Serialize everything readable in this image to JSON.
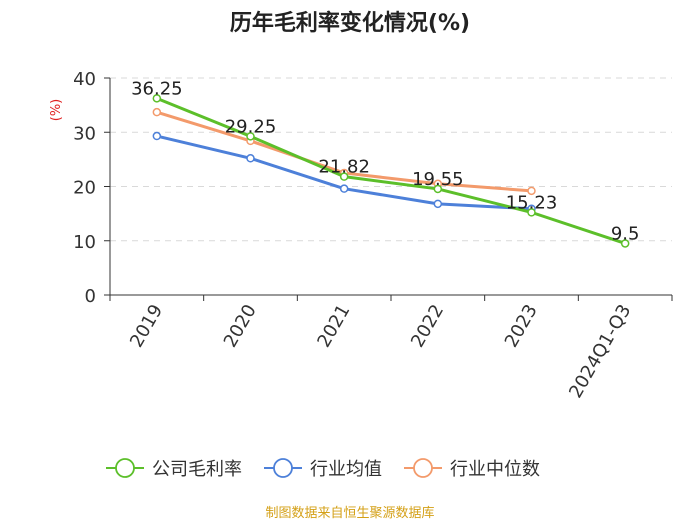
{
  "chart_data": {
    "type": "line",
    "title": "历年毛利率变化情况(%)",
    "ylabel": "(%)",
    "xlabel": "",
    "categories": [
      "2019",
      "2020",
      "2021",
      "2022",
      "2023",
      "2024Q1-Q3"
    ],
    "ylim": [
      0,
      40
    ],
    "yticks": [
      0,
      10,
      20,
      30,
      40
    ],
    "grid": "horizontal-dashed",
    "legend_position": "bottom",
    "series": [
      {
        "name": "公司毛利率",
        "color": "#5cbf2a",
        "values": [
          36.25,
          29.25,
          21.82,
          19.55,
          15.23,
          9.5
        ],
        "labels": [
          "36.25",
          "29.25",
          "21.82",
          "19.55",
          "15.23",
          "9.5"
        ]
      },
      {
        "name": "行业均值",
        "color": "#4d80d9",
        "values": [
          29.3,
          25.2,
          19.6,
          16.8,
          15.9,
          null
        ]
      },
      {
        "name": "行业中位数",
        "color": "#f39a6b",
        "values": [
          33.7,
          28.4,
          22.5,
          20.5,
          19.2,
          null
        ]
      }
    ]
  },
  "source_text": "制图数据来自恒生聚源数据库"
}
